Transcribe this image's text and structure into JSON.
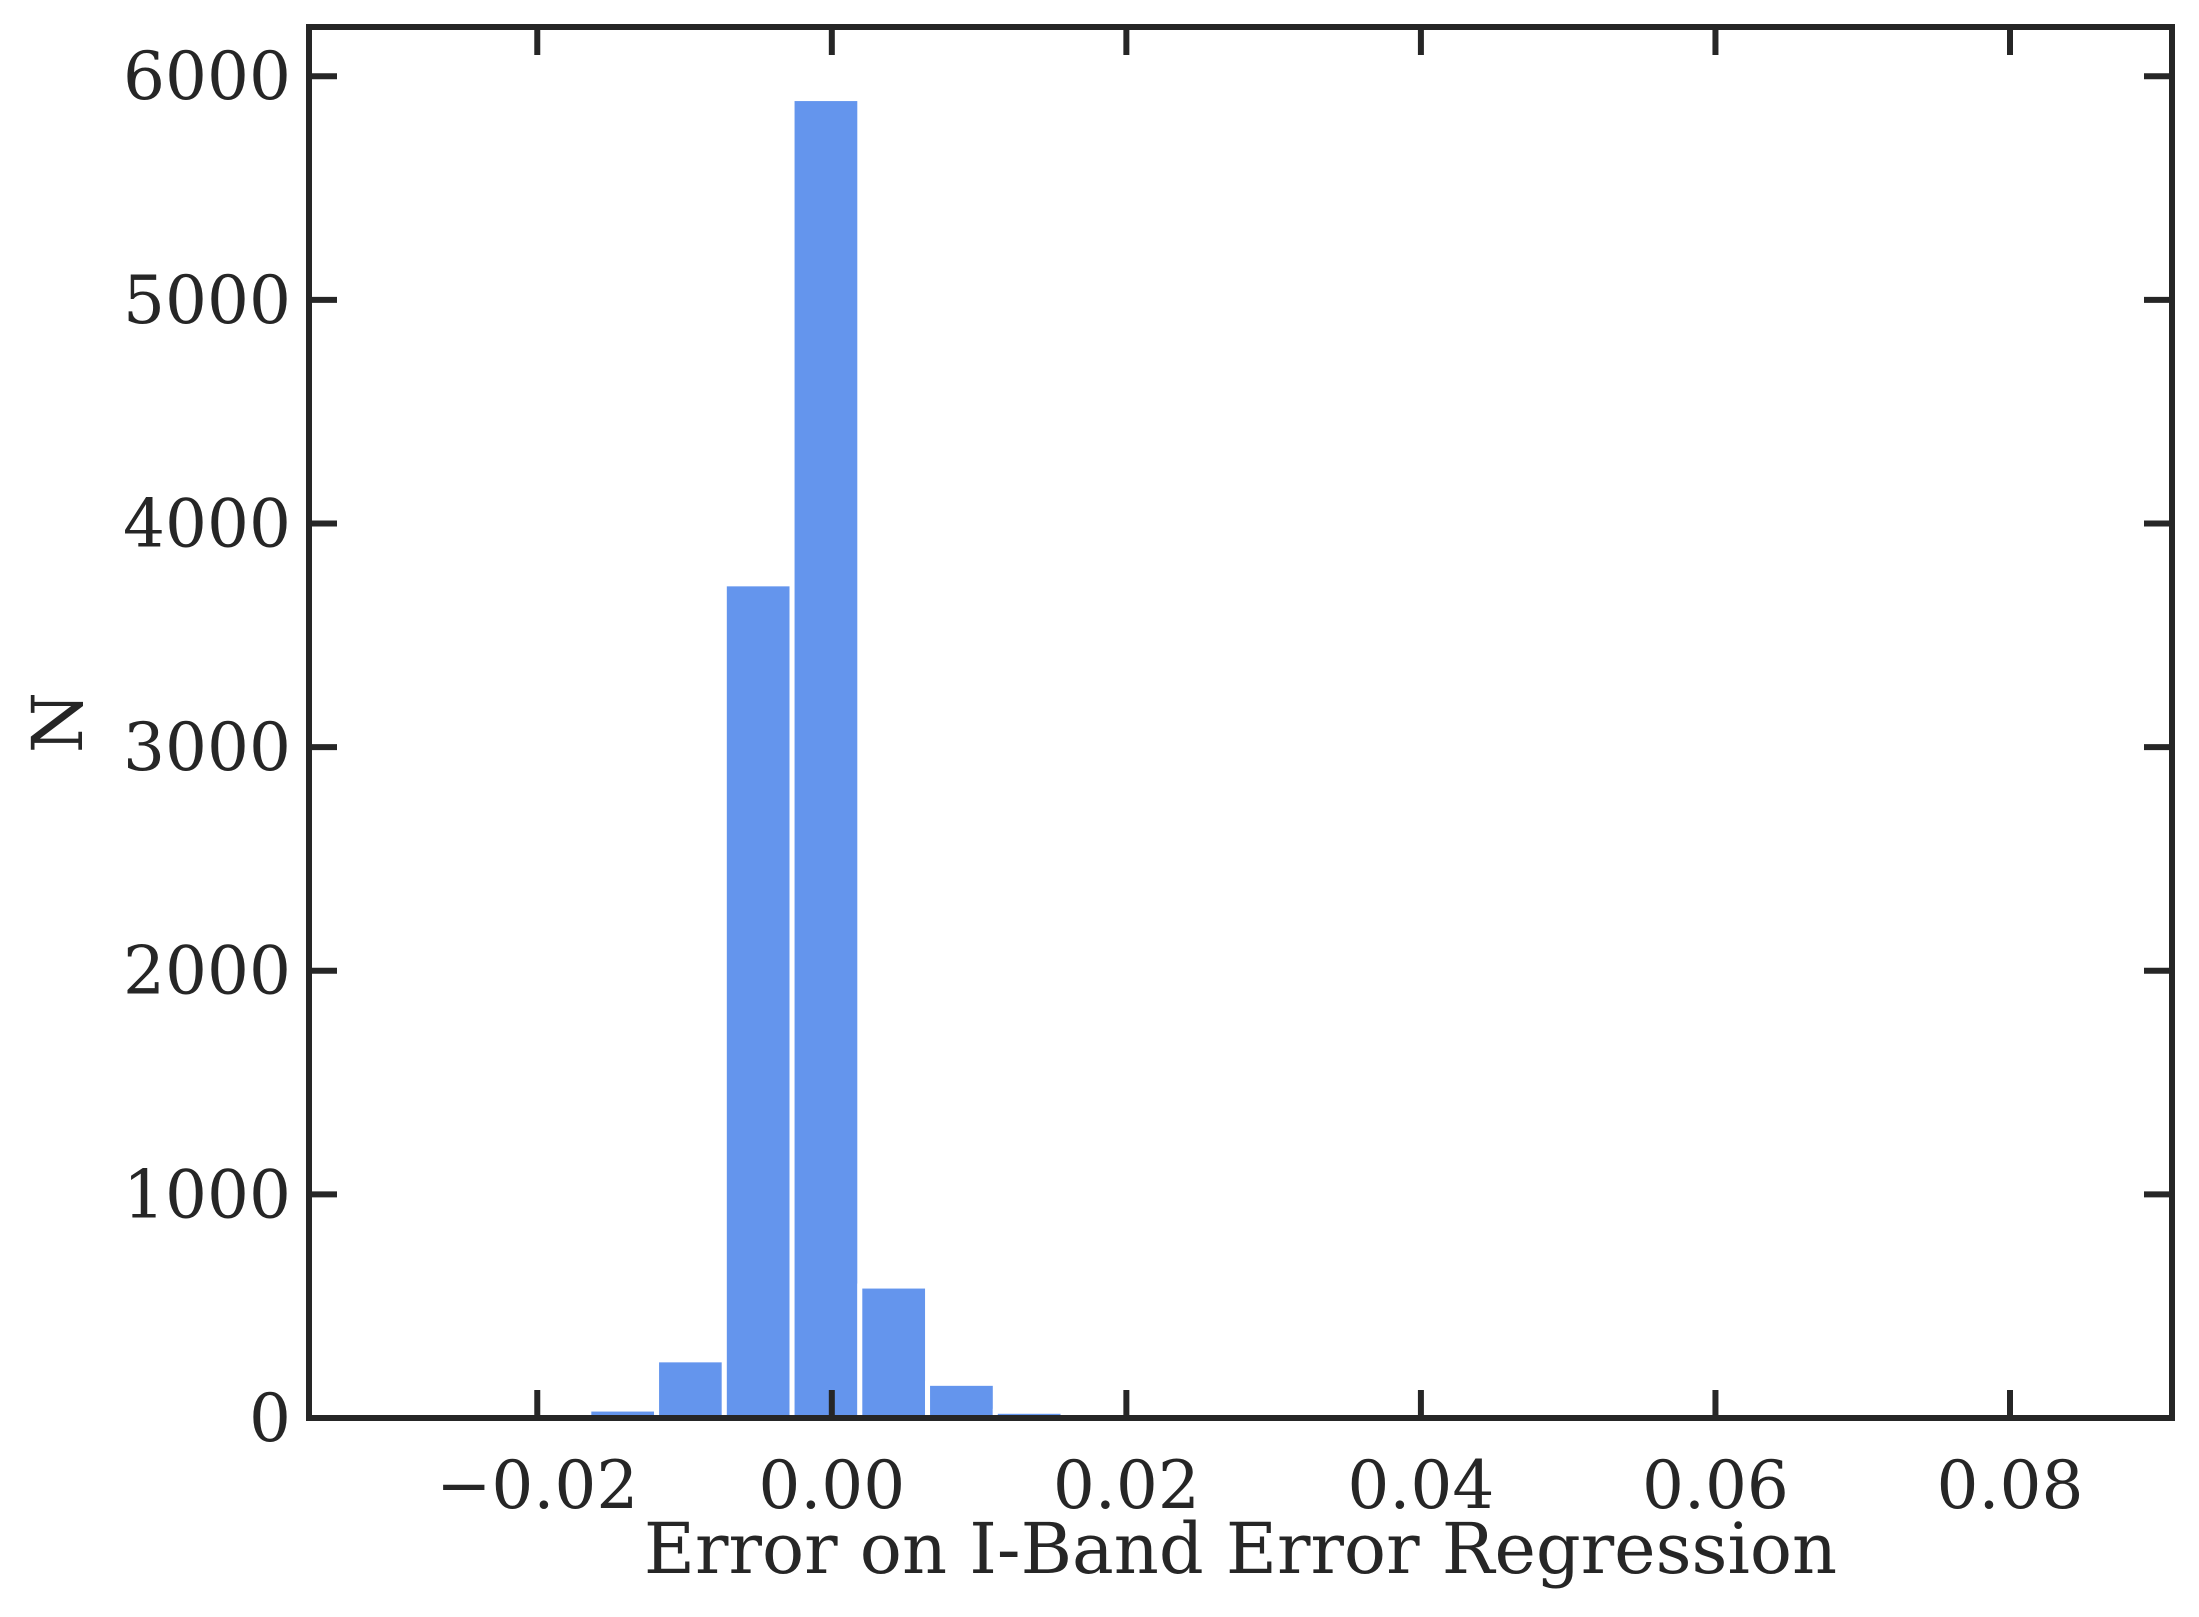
{
  "chart_data": {
    "type": "bar",
    "title": "",
    "xlabel": "Error on I-Band Error Regression",
    "ylabel": "N",
    "xlim": [
      -0.0355,
      0.091
    ],
    "ylim": [
      0,
      6220
    ],
    "xticks": [
      -0.02,
      0.0,
      0.02,
      0.04,
      0.06,
      0.08
    ],
    "xtick_labels": [
      "−0.02",
      "0.00",
      "0.02",
      "0.04",
      "0.06",
      "0.08"
    ],
    "yticks": [
      0,
      1000,
      2000,
      3000,
      4000,
      5000,
      6000
    ],
    "ytick_labels": [
      "0",
      "1000",
      "2000",
      "3000",
      "4000",
      "5000",
      "6000"
    ],
    "bin_width": 0.0046,
    "bins": [
      {
        "x0": -0.0257,
        "value": 2
      },
      {
        "x0": -0.0211,
        "value": 4
      },
      {
        "x0": -0.0165,
        "value": 40
      },
      {
        "x0": -0.0119,
        "value": 260
      },
      {
        "x0": -0.0073,
        "value": 3730
      },
      {
        "x0": -0.0027,
        "value": 5900
      },
      {
        "x0": 0.0019,
        "value": 590
      },
      {
        "x0": 0.0065,
        "value": 155
      },
      {
        "x0": 0.0111,
        "value": 30
      },
      {
        "x0": 0.0157,
        "value": 6
      },
      {
        "x0": 0.0203,
        "value": 2
      }
    ],
    "grid": false,
    "legend": "none",
    "colors": {
      "bar": "#6495ed",
      "bar_edge": "#ffffff",
      "axes": "#262626",
      "text": "#262626",
      "background": "#ffffff"
    }
  }
}
